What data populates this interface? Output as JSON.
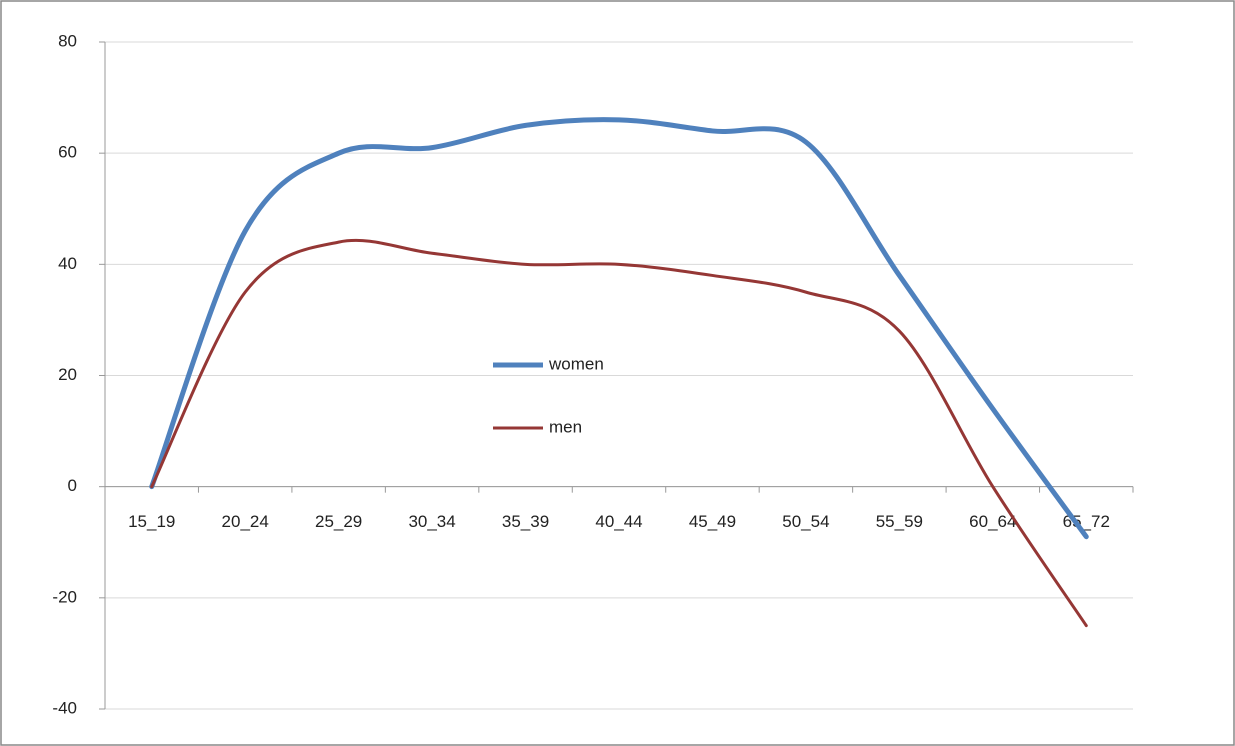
{
  "chart_data": {
    "type": "line",
    "categories": [
      "15_19",
      "20_24",
      "25_29",
      "30_34",
      "35_39",
      "40_44",
      "45_49",
      "50_54",
      "55_59",
      "60_64",
      "65_72"
    ],
    "series": [
      {
        "name": "women",
        "color": "#4f81bd",
        "values": [
          0,
          46,
          60,
          61,
          65,
          66,
          64,
          62,
          38,
          14,
          -9
        ]
      },
      {
        "name": "men",
        "color": "#953735",
        "values": [
          0,
          35,
          44,
          42,
          40,
          40,
          38,
          35,
          28,
          0,
          -25
        ]
      }
    ],
    "ylim": [
      -40,
      80
    ],
    "yticks": [
      -40,
      -20,
      0,
      20,
      40,
      60,
      80
    ],
    "grid": true,
    "smooth": true,
    "legend_position": "center"
  }
}
